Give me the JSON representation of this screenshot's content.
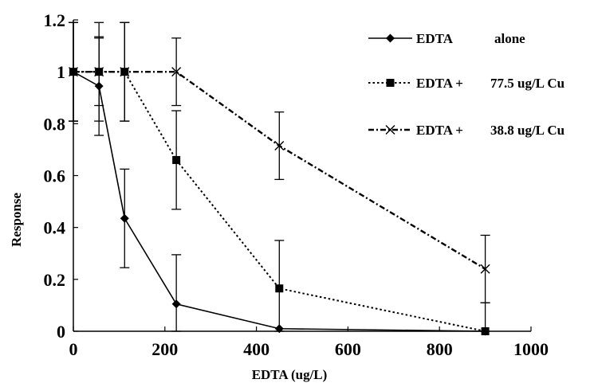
{
  "chart_data": {
    "type": "line",
    "xlabel": "EDTA (ug/L)",
    "ylabel": "Response",
    "xlim": [
      0,
      1000
    ],
    "ylim": [
      0,
      1.2
    ],
    "x_ticks": [
      "0",
      "200",
      "400",
      "600",
      "800",
      "1000"
    ],
    "y_ticks": [
      "0",
      "0.2",
      "0.4",
      "0.6",
      "0.8",
      "1",
      "1.2"
    ],
    "grid": false,
    "legend_position": "top-right",
    "series": [
      {
        "legend_prefix": "EDTA",
        "legend_suffix": "alone",
        "marker": "diamond",
        "line_style": "solid",
        "color": "#000000",
        "x": [
          0,
          56,
          112,
          225,
          450,
          900
        ],
        "y": [
          1.0,
          0.945,
          0.435,
          0.105,
          0.01,
          0.0
        ],
        "error": [
          0.19,
          0.19,
          0.19,
          0.19,
          0.0,
          0.0
        ]
      },
      {
        "legend_prefix": "EDTA +",
        "legend_suffix": "77.5 ug/L Cu",
        "marker": "square",
        "line_style": "dotted",
        "color": "#000000",
        "x": [
          0,
          56,
          112,
          225,
          450,
          900
        ],
        "y": [
          1.0,
          1.0,
          1.0,
          0.66,
          0.165,
          0.0
        ],
        "error": [
          0.19,
          0.19,
          0.19,
          0.19,
          0.185,
          0.11
        ]
      },
      {
        "legend_prefix": "EDTA +",
        "legend_suffix": "38.8 ug/L Cu",
        "marker": "x",
        "line_style": "dash-dot",
        "color": "#000000",
        "x": [
          0,
          56,
          112,
          225,
          450,
          900
        ],
        "y": [
          1.0,
          1.0,
          1.0,
          1.0,
          0.715,
          0.24
        ],
        "error": [
          0.19,
          0.13,
          0.19,
          0.13,
          0.13,
          0.13
        ]
      }
    ]
  }
}
